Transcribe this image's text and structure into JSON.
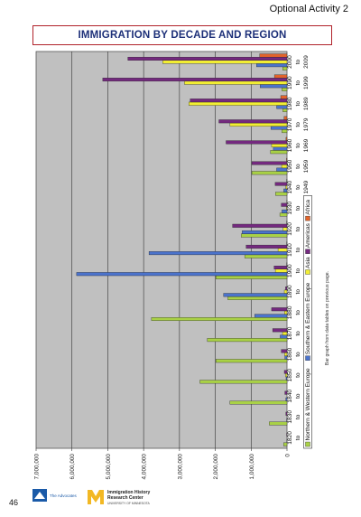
{
  "header": {
    "activity": "Optional Activity 2"
  },
  "page": {
    "number": "46"
  },
  "logos": {
    "publisher": {
      "text": "The Advocates",
      "color": "#1a5aa8"
    },
    "ihrc": {
      "line1": "Immigration History",
      "line2": "Research Center",
      "line3": "UNIVERSITY OF MINNESOTA",
      "color": "#f2b824"
    }
  },
  "chart_data": {
    "type": "bar",
    "orientation": "horizontal",
    "title": "IMMIGRATION BY DECADE AND REGION",
    "note": "Bar graph from data tables on previous page.",
    "categories": [
      [
        "1820",
        "to",
        "1829"
      ],
      [
        "1830",
        "to",
        "1839"
      ],
      [
        "1840",
        "to",
        "1849"
      ],
      [
        "1850",
        "to",
        "1859"
      ],
      [
        "1860",
        "to",
        "1869"
      ],
      [
        "1870",
        "to",
        "1879"
      ],
      [
        "1880",
        "to",
        "1889"
      ],
      [
        "1890",
        "to",
        "1899"
      ],
      [
        "1900",
        "to",
        "1909"
      ],
      [
        "1910",
        "to",
        "1919"
      ],
      [
        "1920",
        "to",
        "1929"
      ],
      [
        "1930",
        "to",
        "1939"
      ],
      [
        "1940",
        "to",
        "1949"
      ],
      [
        "1950",
        "to",
        "1959"
      ],
      [
        "1960",
        "to",
        "1969"
      ],
      [
        "1970",
        "to",
        "1979"
      ],
      [
        "1980",
        "to",
        "1989"
      ],
      [
        "1990",
        "to",
        "1999"
      ],
      [
        "2000",
        "to",
        "2009"
      ]
    ],
    "series": [
      {
        "name": "Northern & Western Europe",
        "color": "#a9d146",
        "values": [
          95000,
          495000,
          1595000,
          2430000,
          1985000,
          2220000,
          3780000,
          1650000,
          1985000,
          1180000,
          1280000,
          200000,
          320000,
          980000,
          460000,
          140000,
          115000,
          140000,
          120000
        ]
      },
      {
        "name": "Southern & Eastern Europe",
        "color": "#4b73cc",
        "values": [
          2000,
          10000,
          30000,
          25000,
          60000,
          190000,
          900000,
          1770000,
          5870000,
          3850000,
          1250000,
          140000,
          90000,
          290000,
          380000,
          450000,
          290000,
          750000,
          850000
        ]
      },
      {
        "name": "Asia",
        "color": "#f2ee33",
        "values": [
          0,
          0,
          0,
          40000,
          65000,
          125000,
          70000,
          75000,
          325000,
          250000,
          110000,
          15000,
          35000,
          150000,
          430000,
          1590000,
          2740000,
          2860000,
          3470000
        ]
      },
      {
        "name": "Americas",
        "color": "#74297f",
        "values": [
          10000,
          30000,
          60000,
          75000,
          160000,
          400000,
          430000,
          40000,
          360000,
          1140000,
          1520000,
          160000,
          330000,
          980000,
          1700000,
          1900000,
          2700000,
          5140000,
          4440000
        ]
      },
      {
        "name": "Africa",
        "color": "#e2632a",
        "values": [
          0,
          0,
          0,
          0,
          0,
          0,
          0,
          0,
          5000,
          8000,
          6000,
          2000,
          7000,
          14000,
          28000,
          80000,
          175000,
          350000,
          760000
        ]
      }
    ],
    "value_axis": {
      "min": 0,
      "max": 7000000,
      "ticks": [
        "7,000,000",
        "6,000,000",
        "5,000,000",
        "4,000,000",
        "3,000,000",
        "2,000,000",
        "1,000,000",
        "0"
      ],
      "tick_values": [
        7000000,
        6000000,
        5000000,
        4000000,
        3000000,
        2000000,
        1000000,
        0
      ]
    },
    "grid": true,
    "plot_bg": "#c0c0c0",
    "legend": "right"
  }
}
